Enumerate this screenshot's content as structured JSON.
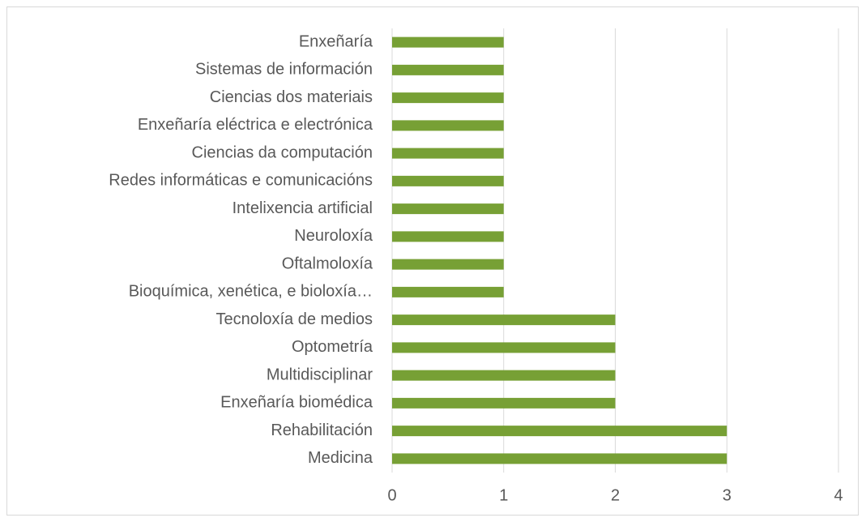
{
  "chart_data": {
    "type": "barh",
    "categories": [
      "Enxeñaría",
      "Sistemas de información",
      "Ciencias dos materiais",
      "Enxeñaría eléctrica e electrónica",
      "Ciencias da computación",
      "Redes informáticas e comunicacións",
      "Intelixencia artificial",
      "Neuroloxía",
      "Oftalmoloxía",
      "Bioquímica, xenética, e bioloxía…",
      "Tecnoloxía de medios",
      "Optometría",
      "Multidisciplinar",
      "Enxeñaría biomédica",
      "Rehabilitación",
      "Medicina"
    ],
    "values": [
      1,
      1,
      1,
      1,
      1,
      1,
      1,
      1,
      1,
      1,
      2,
      2,
      2,
      2,
      3,
      3
    ],
    "color": "#77a035",
    "xlim": [
      0,
      4
    ],
    "xticks": [
      0,
      1,
      2,
      3,
      4
    ],
    "grid": true
  }
}
